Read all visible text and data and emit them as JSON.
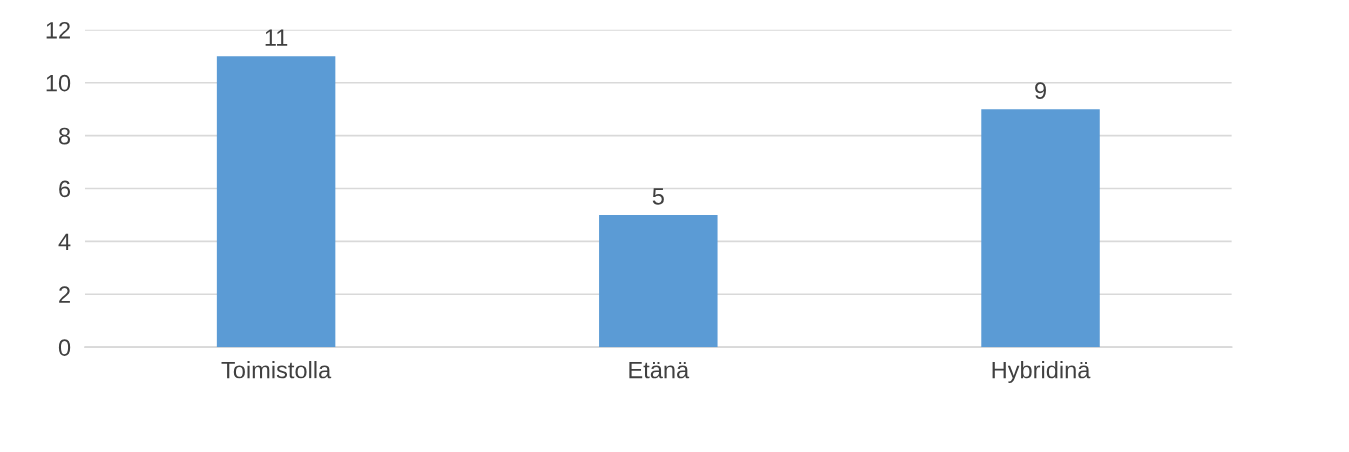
{
  "chart_data": {
    "type": "bar",
    "categories": [
      "Toimistolla",
      "Etänä",
      "Hybridinä"
    ],
    "values": [
      11,
      5,
      9
    ],
    "color": "#5b9bd5",
    "ylim": [
      0,
      12
    ],
    "yticks": [
      0,
      2,
      4,
      6,
      8,
      10,
      12
    ],
    "grid": "y",
    "data_labels": true,
    "legend": false
  }
}
